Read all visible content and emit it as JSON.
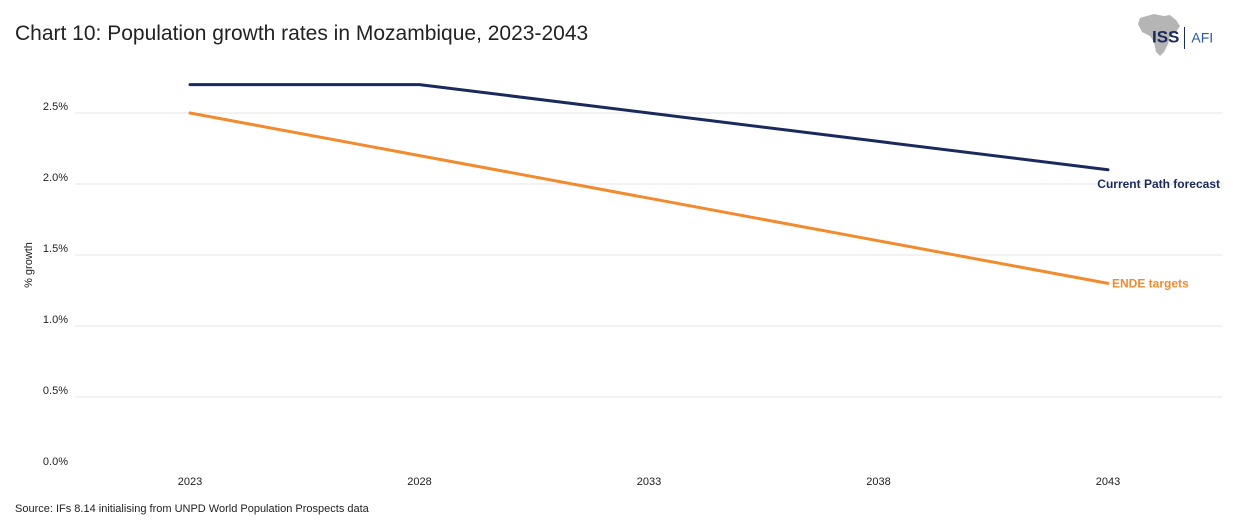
{
  "title": "Chart 10: Population growth rates in Mozambique, 2023-2043",
  "source": "Source: IFs 8.14 initialising from UNPD World Population Prospects data",
  "logo": {
    "primary": "ISS",
    "secondary": "AFI"
  },
  "chart_data": {
    "type": "line",
    "ylabel": "% growth",
    "xlabel": "",
    "x": [
      2023,
      2028,
      2033,
      2038,
      2043
    ],
    "x_tick_labels": [
      "2023",
      "2028",
      "2033",
      "2038",
      "2043"
    ],
    "ylim": [
      0,
      2.7
    ],
    "y_ticks": [
      0,
      0.5,
      1.0,
      1.5,
      2.0,
      2.5
    ],
    "y_tick_labels": [
      "0.0%",
      "0.5%",
      "1.0%",
      "1.5%",
      "2.0%",
      "2.5%"
    ],
    "grid": "horizontal",
    "series": [
      {
        "name": "Current Path forecast",
        "color": "#1b2a5c",
        "values": [
          2.7,
          2.7,
          2.5,
          2.3,
          2.1
        ]
      },
      {
        "name": "ENDE targets",
        "color": "#f28a2e",
        "values": [
          2.5,
          2.2,
          1.9,
          1.6,
          1.3
        ]
      }
    ]
  }
}
